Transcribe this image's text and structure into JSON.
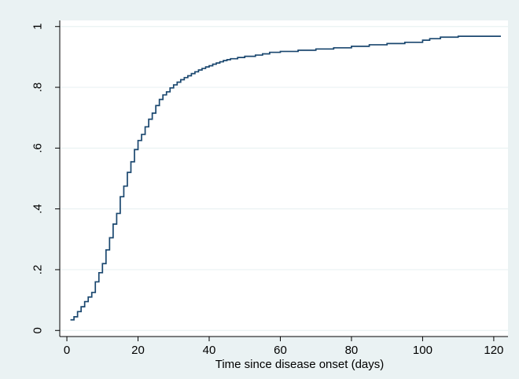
{
  "chart_data": {
    "type": "line",
    "step": true,
    "title": "",
    "xlabel": "Time since disease onset (days)",
    "ylabel": "",
    "xlim": [
      -2,
      124
    ],
    "ylim": [
      -0.02,
      1.02
    ],
    "xticks": [
      0,
      20,
      40,
      60,
      80,
      100,
      120
    ],
    "yticks": [
      0,
      0.2,
      0.4,
      0.6,
      0.8,
      1
    ],
    "ytick_labels": [
      "0",
      ".2",
      ".4",
      ".6",
      ".8",
      "1"
    ],
    "grid": true,
    "legend": "none",
    "colors": {
      "series": "#1a476f",
      "frame": "#eaf2f3",
      "grid": "#eaf2f3"
    },
    "series": [
      {
        "x": [
          1,
          2,
          3,
          4,
          5,
          6,
          7,
          8,
          9,
          10,
          11,
          12,
          13,
          14,
          15,
          16,
          17,
          18,
          19,
          20,
          21,
          22,
          23,
          24,
          25,
          26,
          27,
          28,
          29,
          30,
          31,
          32,
          33,
          34,
          35,
          36,
          37,
          38,
          39,
          40,
          41,
          42,
          43,
          44,
          45,
          46,
          48,
          50,
          53,
          55,
          57,
          60,
          65,
          70,
          75,
          80,
          85,
          90,
          95,
          100,
          102,
          105,
          110,
          122
        ],
        "y": [
          0.035,
          0.045,
          0.062,
          0.078,
          0.095,
          0.11,
          0.125,
          0.16,
          0.19,
          0.22,
          0.265,
          0.305,
          0.35,
          0.385,
          0.44,
          0.475,
          0.52,
          0.555,
          0.595,
          0.625,
          0.645,
          0.67,
          0.695,
          0.715,
          0.74,
          0.76,
          0.775,
          0.785,
          0.798,
          0.808,
          0.817,
          0.825,
          0.832,
          0.838,
          0.845,
          0.851,
          0.857,
          0.862,
          0.867,
          0.871,
          0.876,
          0.88,
          0.884,
          0.888,
          0.891,
          0.894,
          0.898,
          0.902,
          0.906,
          0.91,
          0.915,
          0.918,
          0.922,
          0.926,
          0.93,
          0.935,
          0.94,
          0.944,
          0.948,
          0.955,
          0.96,
          0.965,
          0.968,
          0.968
        ]
      }
    ]
  }
}
